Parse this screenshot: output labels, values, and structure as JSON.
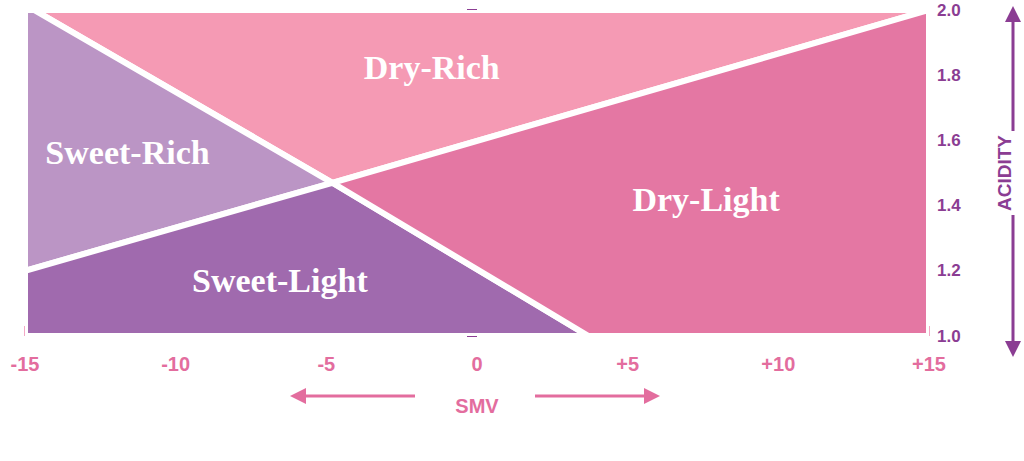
{
  "chart_data": {
    "type": "polygon",
    "x_label": "SMV",
    "y_label": "ACIDITY",
    "xlim": [
      -15,
      15
    ],
    "xticks": [
      -15,
      -10,
      -5,
      0,
      {
        "value": 5,
        "label": "+5"
      },
      {
        "value": 10,
        "label": "+10"
      },
      {
        "value": 15,
        "label": "+15"
      }
    ],
    "ylim": [
      1.0,
      2.0
    ],
    "yticks": [
      {
        "value": 1,
        "label": "1.0"
      },
      1.2,
      1.4,
      1.6,
      1.8,
      {
        "value": 2,
        "label": "2.0"
      }
    ],
    "grid": false,
    "series": [
      {
        "name": "Dry-Rich",
        "color": "#f59ab4",
        "values": [
          [
            -14.7,
            2.0
          ],
          [
            15,
            2.0
          ],
          [
            -4.8,
            1.47
          ]
        ]
      },
      {
        "name": "Sweet-Rich",
        "color": "#bb95c5",
        "values": [
          [
            -15,
            2.0
          ],
          [
            -14.7,
            2.0
          ],
          [
            -4.8,
            1.47
          ],
          [
            -15,
            1.2
          ]
        ]
      },
      {
        "name": "Sweet-Light",
        "color": "#a06aae",
        "values": [
          [
            -15,
            1.2
          ],
          [
            -4.8,
            1.47
          ],
          [
            3.7,
            1.0
          ],
          [
            -15,
            1.0
          ]
        ]
      },
      {
        "name": "Dry-Light",
        "color": "#e477a3",
        "values": [
          [
            -4.8,
            1.47
          ],
          [
            15,
            2.0
          ],
          [
            15,
            1.0
          ],
          [
            3.7,
            1.0
          ]
        ]
      }
    ]
  }
}
